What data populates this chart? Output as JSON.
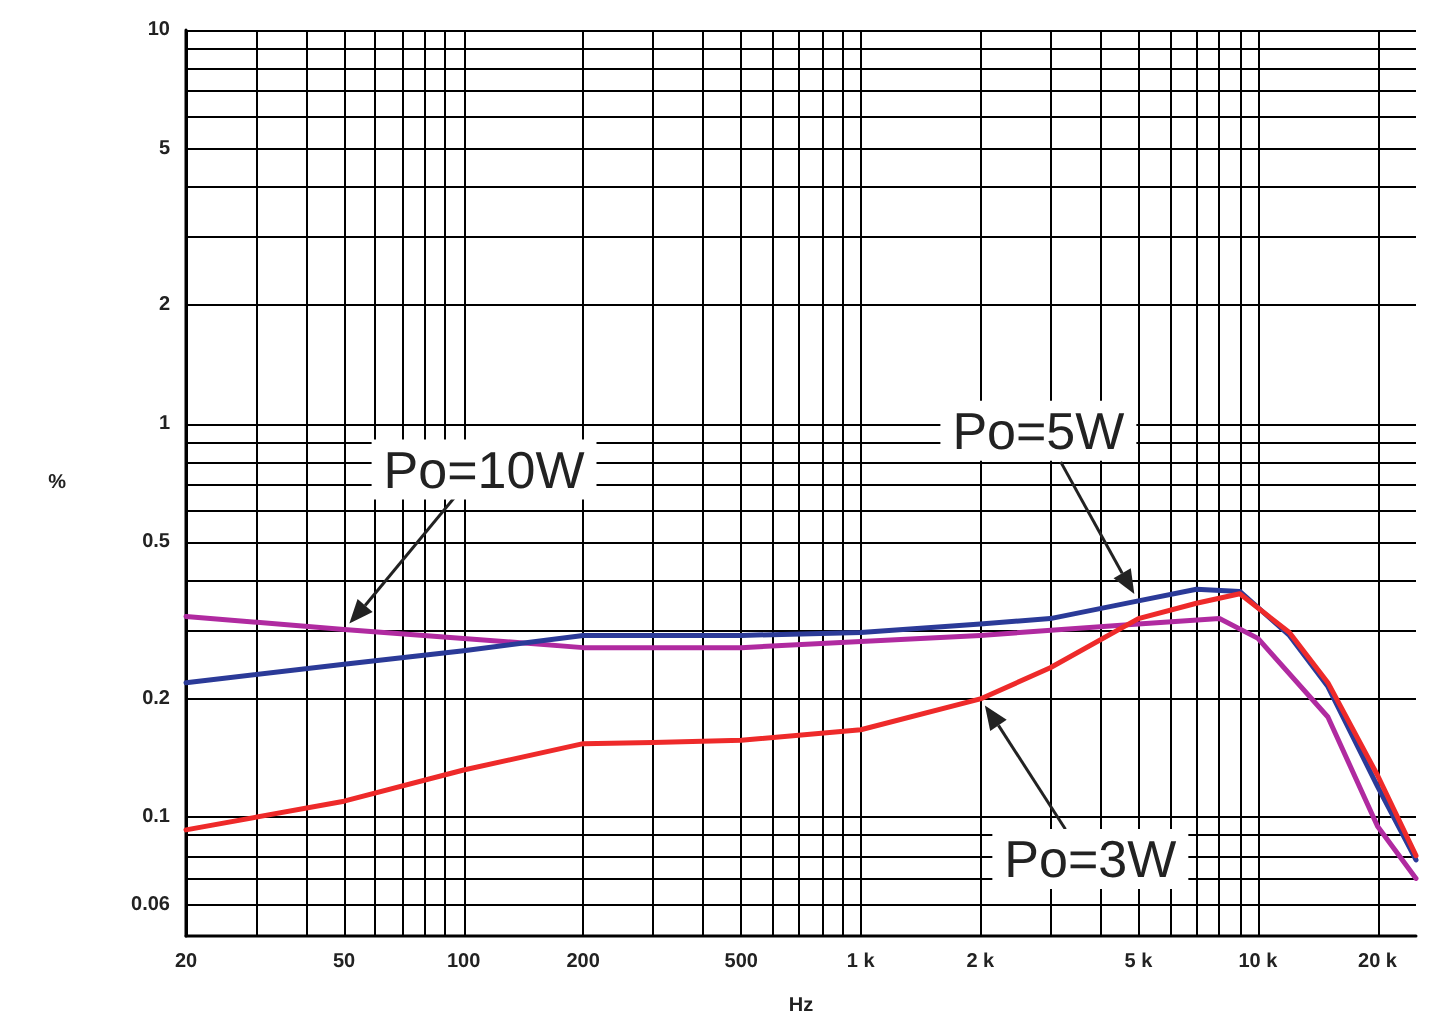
{
  "chart_data": {
    "type": "line",
    "xlabel": "Hz",
    "ylabel": "%",
    "log": "xy",
    "grid": true,
    "marker": "none",
    "line_style": "solid",
    "legend": false,
    "xlim": [
      20,
      25000
    ],
    "ylim": [
      0.05,
      10
    ],
    "xticks": [
      20,
      {
        "value": 30,
        "label": null
      },
      {
        "value": 40,
        "label": null
      },
      50,
      {
        "value": 60,
        "label": null
      },
      {
        "value": 70,
        "label": null
      },
      {
        "value": 80,
        "label": null
      },
      {
        "value": 90,
        "label": null
      },
      100,
      200,
      {
        "value": 300,
        "label": null
      },
      {
        "value": 400,
        "label": null
      },
      500,
      {
        "value": 600,
        "label": null
      },
      {
        "value": 700,
        "label": null
      },
      {
        "value": 800,
        "label": null
      },
      {
        "value": 900,
        "label": null
      },
      {
        "value": 1000,
        "label": "1 k"
      },
      {
        "value": 2000,
        "label": "2 k"
      },
      {
        "value": 3000,
        "label": null
      },
      {
        "value": 4000,
        "label": null
      },
      {
        "value": 5000,
        "label": "5 k"
      },
      {
        "value": 6000,
        "label": null
      },
      {
        "value": 7000,
        "label": null
      },
      {
        "value": 8000,
        "label": null
      },
      {
        "value": 9000,
        "label": null
      },
      {
        "value": 10000,
        "label": "10 k"
      },
      {
        "value": 20000,
        "label": "20 k"
      }
    ],
    "yticks": [
      0.06,
      {
        "value": 0.07,
        "label": null
      },
      {
        "value": 0.08,
        "label": null
      },
      {
        "value": 0.09,
        "label": null
      },
      0.1,
      0.2,
      {
        "value": 0.3,
        "label": null
      },
      {
        "value": 0.4,
        "label": null
      },
      0.5,
      {
        "value": 0.6,
        "label": null
      },
      {
        "value": 0.7,
        "label": null
      },
      {
        "value": 0.8,
        "label": null
      },
      {
        "value": 0.9,
        "label": null
      },
      1,
      2,
      {
        "value": 3,
        "label": null
      },
      {
        "value": 4,
        "label": null
      },
      5,
      {
        "value": 6,
        "label": null
      },
      {
        "value": 7,
        "label": null
      },
      {
        "value": 8,
        "label": null
      },
      {
        "value": 9,
        "label": null
      },
      10
    ],
    "series": [
      {
        "name": "Po=10W",
        "color": "#b02aa0",
        "x": [
          20,
          50,
          100,
          200,
          500,
          1000,
          2000,
          5000,
          8000,
          10000,
          15000,
          20000,
          25000
        ],
        "values": [
          0.324,
          0.3,
          0.285,
          0.27,
          0.27,
          0.28,
          0.29,
          0.31,
          0.32,
          0.285,
          0.18,
          0.095,
          0.07
        ]
      },
      {
        "name": "Po=5W",
        "color": "#2b3a98",
        "x": [
          20,
          50,
          100,
          200,
          500,
          1000,
          2000,
          3000,
          5000,
          7000,
          9000,
          12000,
          15000,
          20000,
          25000
        ],
        "values": [
          0.22,
          0.245,
          0.265,
          0.29,
          0.29,
          0.295,
          0.31,
          0.32,
          0.355,
          0.38,
          0.375,
          0.29,
          0.215,
          0.12,
          0.078
        ]
      },
      {
        "name": "Po=3W",
        "color": "#ee2a2a",
        "x": [
          20,
          50,
          100,
          200,
          300,
          500,
          1000,
          2000,
          3000,
          5000,
          7000,
          9000,
          12000,
          15000,
          20000,
          25000
        ],
        "values": [
          0.093,
          0.11,
          0.132,
          0.154,
          0.155,
          0.157,
          0.167,
          0.2,
          0.24,
          0.32,
          0.35,
          0.37,
          0.295,
          0.22,
          0.128,
          0.08
        ]
      }
    ]
  }
}
